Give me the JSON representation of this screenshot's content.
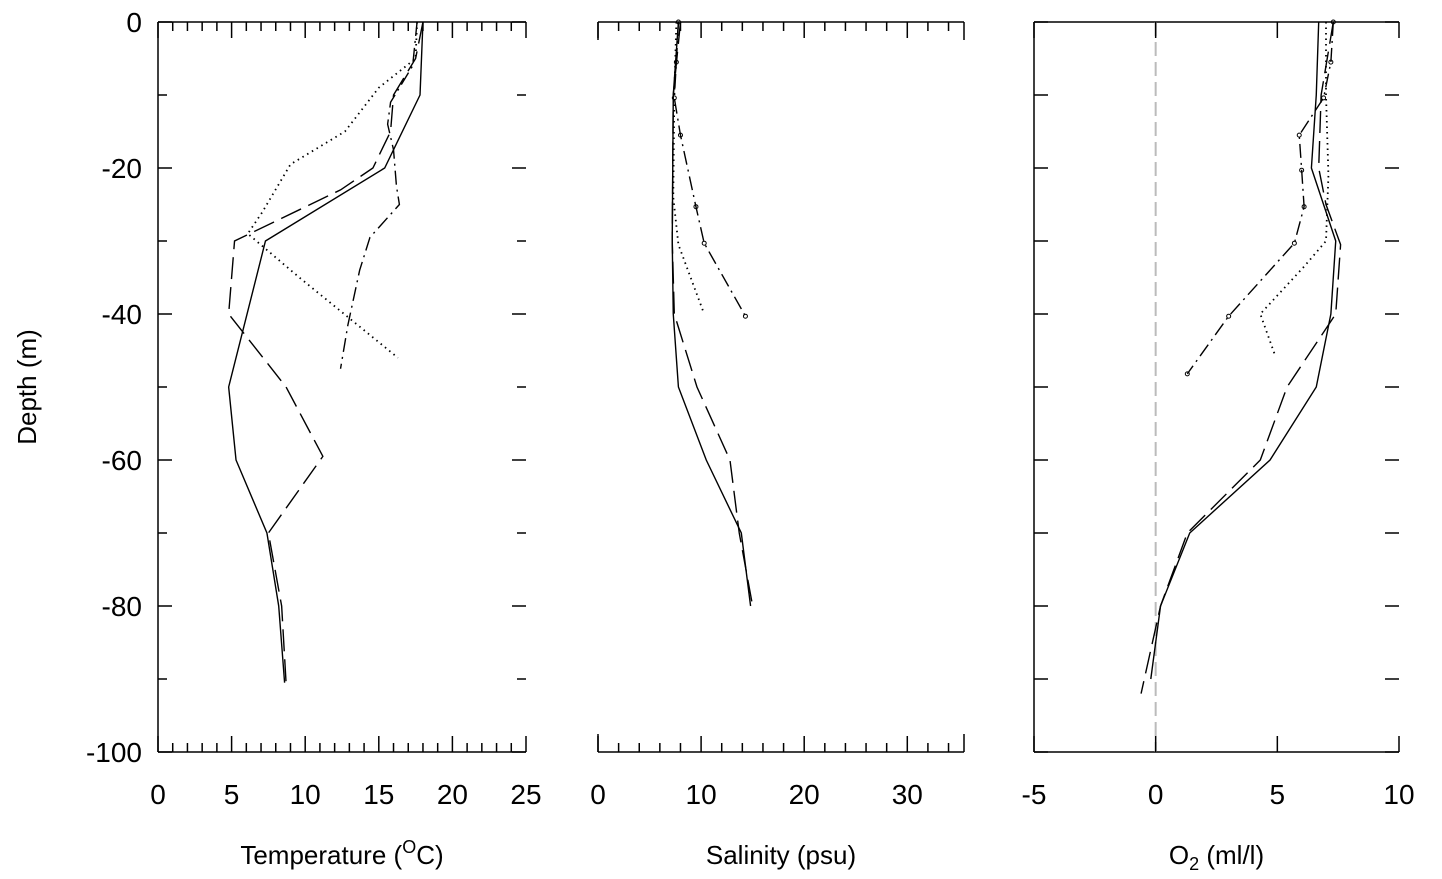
{
  "chart_data": [
    {
      "type": "line",
      "ylabel": "Depth (m)",
      "xlabel": [
        {
          "text": "Temperature ("
        },
        {
          "text": "O",
          "shift": "super"
        },
        {
          "text": "C)"
        }
      ],
      "xlim": [
        0,
        25
      ],
      "ylim": [
        -100,
        0
      ],
      "xticks": [
        0,
        5,
        10,
        15,
        20,
        25
      ],
      "xminor": [
        1,
        2,
        3,
        4,
        6,
        7,
        8,
        9,
        11,
        12,
        13,
        14,
        16,
        17,
        18,
        19,
        21,
        22,
        23,
        24
      ],
      "yticks": [
        0,
        -20,
        -40,
        -60,
        -80,
        -100
      ],
      "yminor": [
        -10,
        -30,
        -50,
        -70,
        -90
      ],
      "ytick_labels": true,
      "left_spine": true,
      "color": "#000000",
      "series": [
        {
          "dash": "solid",
          "x": [
            18,
            17.9,
            17.8,
            15.4,
            7.3,
            4.8,
            5.3,
            7.4,
            8.2,
            8.6
          ],
          "y": [
            0,
            -5,
            -10,
            -20,
            -30,
            -50,
            -60,
            -70,
            -80,
            -90.5
          ]
        },
        {
          "dash": "dashed",
          "x": [
            18,
            17.5,
            16,
            15.8,
            14.6,
            12.4,
            5.2,
            4.8,
            8.7,
            11.2,
            7.5,
            8.4,
            8.7
          ],
          "y": [
            0,
            -5,
            -10,
            -15,
            -20,
            -23,
            -30,
            -40,
            -50,
            -59.5,
            -70,
            -80,
            -90.5
          ]
        },
        {
          "dash": "dotted",
          "x": [
            17.6,
            17.5,
            15,
            12.7,
            9,
            7.1,
            6.1,
            9.6,
            16.3
          ],
          "y": [
            0,
            -5,
            -9,
            -15,
            -19.5,
            -26,
            -29,
            -35,
            -46
          ]
        },
        {
          "dash": "dashdot",
          "x": [
            17.6,
            17.3,
            15.8,
            15.6,
            16,
            16.2,
            16.4,
            14.4,
            13.7,
            12.9,
            12.4
          ],
          "y": [
            0,
            -6,
            -11,
            -14,
            -17.5,
            -22.5,
            -25,
            -29.5,
            -34,
            -41.5,
            -47.5
          ]
        }
      ]
    },
    {
      "type": "line",
      "xlabel": [
        {
          "text": "Salinity (psu)"
        }
      ],
      "xlim": [
        0,
        35.5
      ],
      "ylim": [
        -100,
        0
      ],
      "xticks": [
        0,
        10,
        20,
        30
      ],
      "xminor": [
        2,
        4,
        6,
        8,
        12,
        14,
        16,
        18,
        22,
        24,
        26,
        28,
        32,
        34
      ],
      "left_spine": false,
      "color": "#000000",
      "series": [
        {
          "dash": "solid",
          "x": [
            7.8,
            7.3,
            7.2,
            7.3,
            7.8,
            10.5,
            13.9,
            14.8
          ],
          "y": [
            0,
            -10,
            -30,
            -40,
            -50,
            -60,
            -70,
            -80
          ]
        },
        {
          "dash": "dashed",
          "x": [
            8,
            7.3,
            7.2,
            7.4,
            9.6,
            12.8,
            13.7,
            15
          ],
          "y": [
            0,
            -10,
            -30,
            -40,
            -50,
            -60,
            -70,
            -80
          ]
        },
        {
          "dash": "dotted",
          "x": [
            7.6,
            7.4,
            7.3,
            7.8,
            10.3
          ],
          "y": [
            0,
            -10,
            -24,
            -30.5,
            -40
          ]
        },
        {
          "dash": "dashdot",
          "markers": true,
          "x": [
            7.8,
            7.6,
            7.4,
            8,
            9.5,
            10.3,
            14.3
          ],
          "y": [
            0,
            -5.5,
            -10.4,
            -15.5,
            -25.3,
            -30.3,
            -40.3
          ]
        }
      ]
    },
    {
      "type": "line",
      "xlabel": [
        {
          "text": "O"
        },
        {
          "text": "2",
          "shift": "sub"
        },
        {
          "text": " (ml/l)"
        }
      ],
      "xlim": [
        -5,
        10
      ],
      "ylim": [
        -100,
        0
      ],
      "xticks": [
        -5,
        0,
        5,
        10
      ],
      "yticks": [
        0,
        -10,
        -20,
        -30,
        -40,
        -50,
        -60,
        -70,
        -80,
        -90,
        -100
      ],
      "ytick_labels": false,
      "left_spine": true,
      "color": "#000000",
      "zero_line": {
        "x": 0,
        "color": "#bbbbbb"
      },
      "series": [
        {
          "dash": "solid",
          "x": [
            6.7,
            6.6,
            6.4,
            6.9,
            7.4,
            7.2,
            6.6,
            4.7,
            1.4,
            0.2,
            -0.2
          ],
          "y": [
            0,
            -10,
            -20,
            -25,
            -30,
            -40,
            -50,
            -60,
            -70,
            -80,
            -90
          ]
        },
        {
          "dash": "dashed",
          "x": [
            7.3,
            6.8,
            6.7,
            7,
            7.6,
            7.4,
            5.4,
            4.3,
            1.3,
            0.2,
            -0.6
          ],
          "y": [
            0,
            -10,
            -20,
            -25,
            -30.5,
            -40,
            -50,
            -60,
            -70,
            -80,
            -92
          ]
        },
        {
          "dash": "dotted",
          "x": [
            7,
            7,
            7.1,
            7,
            6.1,
            4.3,
            4.9
          ],
          "y": [
            0,
            -10,
            -21,
            -30,
            -33.5,
            -40,
            -45.6
          ]
        },
        {
          "dash": "dashdot",
          "markers": true,
          "x": [
            7.3,
            7.2,
            6.9,
            5.9,
            6,
            6.1,
            5.7,
            3,
            1.3
          ],
          "y": [
            0,
            -5.5,
            -10.4,
            -15.5,
            -20.3,
            -25.3,
            -30.3,
            -40.3,
            -48.2
          ]
        }
      ]
    }
  ]
}
